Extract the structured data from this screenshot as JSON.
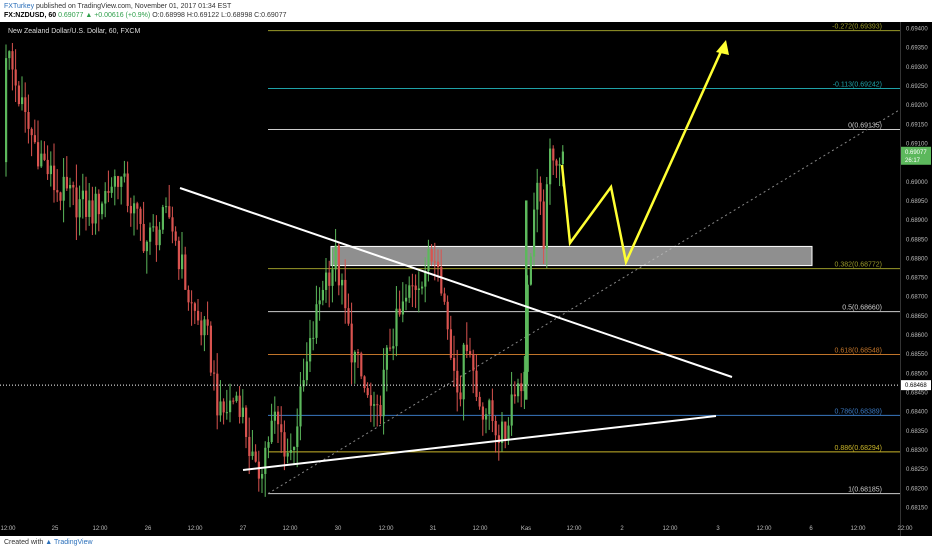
{
  "header": {
    "user": "FXTurkey",
    "published": "published on TradingView.com, November 01, 2017 01:34 EST",
    "symbol": "FX:NZDUSD, 60",
    "change": "0.69077 ▲ +0.00616 (+0.9%)",
    "ohlc": "O:0.68998 H:0.69122 L:0.68998 C:0.69077"
  },
  "footer": {
    "created_with": "Created with",
    "tradingview": "TradingView"
  },
  "chart_data": {
    "type": "candlestick",
    "title": "New Zealand Dollar/U.S. Dollar, 60, FXCM",
    "ylim": [
      0.6813,
      0.6946
    ],
    "price_ticks": [
      0.6815,
      0.682,
      0.6825,
      0.683,
      0.6835,
      0.684,
      0.6845,
      0.685,
      0.6855,
      0.686,
      0.6865,
      0.687,
      0.6875,
      0.688,
      0.6885,
      0.689,
      0.6895,
      0.69,
      0.6905,
      0.691,
      0.6915,
      0.692,
      0.6925,
      0.693,
      0.6935,
      0.694
    ],
    "time_labels": [
      "12:00",
      "25",
      "12:00",
      "26",
      "12:00",
      "27",
      "12:00",
      "30",
      "12:00",
      "31",
      "12:00",
      "Kas",
      "12:00",
      "2",
      "12:00",
      "3",
      "12:00",
      "6",
      "12:00",
      "22:00"
    ],
    "current_price": {
      "value": 0.69077,
      "label": "0.69077",
      "timer": "26:17"
    },
    "crosshair_price": {
      "value": 0.68468,
      "label": "0.68468"
    },
    "fib_levels": [
      {
        "ratio": "-0.272",
        "value": 0.69393,
        "label": "-0.272(0.69393)",
        "color": "#9a9a2a"
      },
      {
        "ratio": "-0.113",
        "value": 0.69242,
        "label": "-0.113(0.69242)",
        "color": "#1fa2a8"
      },
      {
        "ratio": "0",
        "value": 0.69135,
        "label": "0(0.69135)",
        "color": "#cccccc"
      },
      {
        "ratio": "0.382",
        "value": 0.68772,
        "label": "0.382(0.68772)",
        "color": "#9a9a2a"
      },
      {
        "ratio": "0.5",
        "value": 0.6866,
        "label": "0.5(0.68660)",
        "color": "#cccccc"
      },
      {
        "ratio": "0.618",
        "value": 0.68548,
        "label": "0.618(0.68548)",
        "color": "#c0742a"
      },
      {
        "ratio": "0.786",
        "value": 0.68389,
        "label": "0.786(0.68389)",
        "color": "#3a78c0"
      },
      {
        "ratio": "0.886",
        "value": 0.68294,
        "label": "0.886(0.68294)",
        "color": "#c9b52a"
      },
      {
        "ratio": "1",
        "value": 0.68185,
        "label": "1(0.68185)",
        "color": "#cccccc"
      }
    ],
    "resistance_zone": {
      "low": 0.6878,
      "high": 0.6883
    },
    "colors": {
      "up": "#5cb85c",
      "down": "#d9534f",
      "projection": "#ffff33",
      "trendline": "#ffffff"
    }
  }
}
